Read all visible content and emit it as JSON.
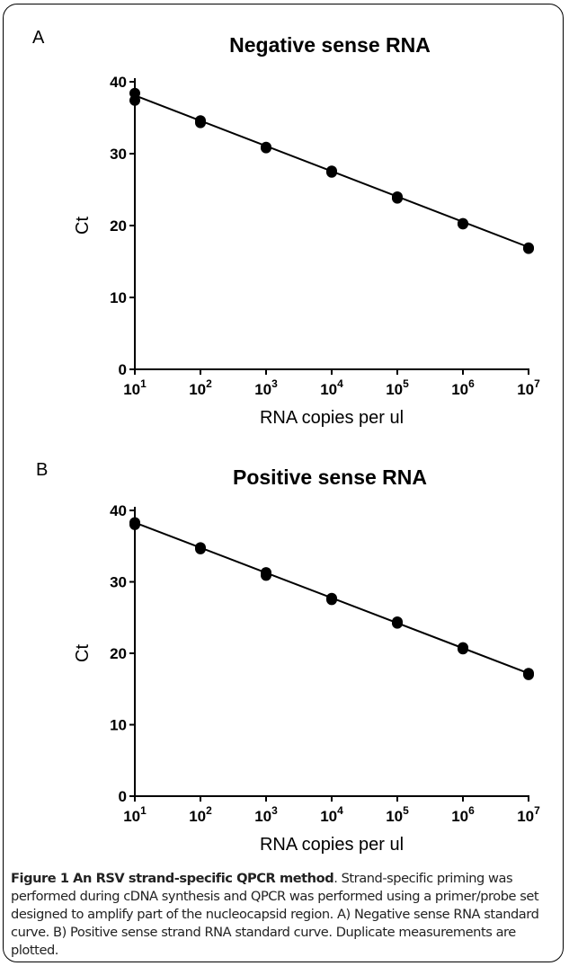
{
  "chart_data": [
    {
      "type": "scatter",
      "panel_label": "A",
      "title": "Negative sense RNA",
      "xlabel": "RNA copies per ul",
      "ylabel": "Ct",
      "x_scale": "log10",
      "xlim": [
        10,
        10000000
      ],
      "ylim": [
        0,
        40
      ],
      "x_ticks": [
        10,
        100,
        1000,
        10000,
        100000,
        1000000,
        10000000
      ],
      "x_tick_exponents": [
        "1",
        "2",
        "3",
        "4",
        "5",
        "6",
        "7"
      ],
      "x_tick_base": "10",
      "y_ticks": [
        0,
        10,
        20,
        30,
        40
      ],
      "grid": false,
      "legend": false,
      "points": [
        {
          "x": 10,
          "y": 38.4
        },
        {
          "x": 10,
          "y": 37.4
        },
        {
          "x": 100,
          "y": 34.6
        },
        {
          "x": 100,
          "y": 34.3
        },
        {
          "x": 1000,
          "y": 30.9
        },
        {
          "x": 1000,
          "y": 30.8
        },
        {
          "x": 10000,
          "y": 27.6
        },
        {
          "x": 10000,
          "y": 27.4
        },
        {
          "x": 100000,
          "y": 24.0
        },
        {
          "x": 100000,
          "y": 23.8
        },
        {
          "x": 1000000,
          "y": 20.3
        },
        {
          "x": 1000000,
          "y": 20.2
        },
        {
          "x": 10000000,
          "y": 16.9
        },
        {
          "x": 10000000,
          "y": 16.8
        }
      ],
      "fit_line": [
        {
          "x": 10,
          "y": 38.1
        },
        {
          "x": 10000000,
          "y": 17.0
        }
      ]
    },
    {
      "type": "scatter",
      "panel_label": "B",
      "title": "Positive sense RNA",
      "xlabel": "RNA copies per ul",
      "ylabel": "Ct",
      "x_scale": "log10",
      "xlim": [
        10,
        10000000
      ],
      "ylim": [
        0,
        40
      ],
      "x_ticks": [
        10,
        100,
        1000,
        10000,
        100000,
        1000000,
        10000000
      ],
      "x_tick_exponents": [
        "1",
        "2",
        "3",
        "4",
        "5",
        "6",
        "7"
      ],
      "x_tick_base": "10",
      "y_ticks": [
        0,
        10,
        20,
        30,
        40
      ],
      "grid": false,
      "legend": false,
      "points": [
        {
          "x": 10,
          "y": 38.3
        },
        {
          "x": 10,
          "y": 38.0
        },
        {
          "x": 100,
          "y": 34.8
        },
        {
          "x": 100,
          "y": 34.6
        },
        {
          "x": 1000,
          "y": 31.3
        },
        {
          "x": 1000,
          "y": 30.9
        },
        {
          "x": 10000,
          "y": 27.7
        },
        {
          "x": 10000,
          "y": 27.5
        },
        {
          "x": 100000,
          "y": 24.4
        },
        {
          "x": 100000,
          "y": 24.2
        },
        {
          "x": 1000000,
          "y": 20.8
        },
        {
          "x": 1000000,
          "y": 20.6
        },
        {
          "x": 10000000,
          "y": 17.2
        },
        {
          "x": 10000000,
          "y": 17.0
        }
      ],
      "fit_line": [
        {
          "x": 10,
          "y": 38.3
        },
        {
          "x": 10000000,
          "y": 17.2
        }
      ]
    }
  ],
  "caption": {
    "figure_title": "Figure 1 An RSV strand-specific QPCR method",
    "text": ". Strand-specific priming was performed during cDNA synthesis and QPCR was performed using a primer/probe set designed to amplify part of the nucleocapsid region. A) Negative sense RNA standard curve. B) Positive sense strand RNA standard curve. Duplicate measurements are plotted."
  }
}
